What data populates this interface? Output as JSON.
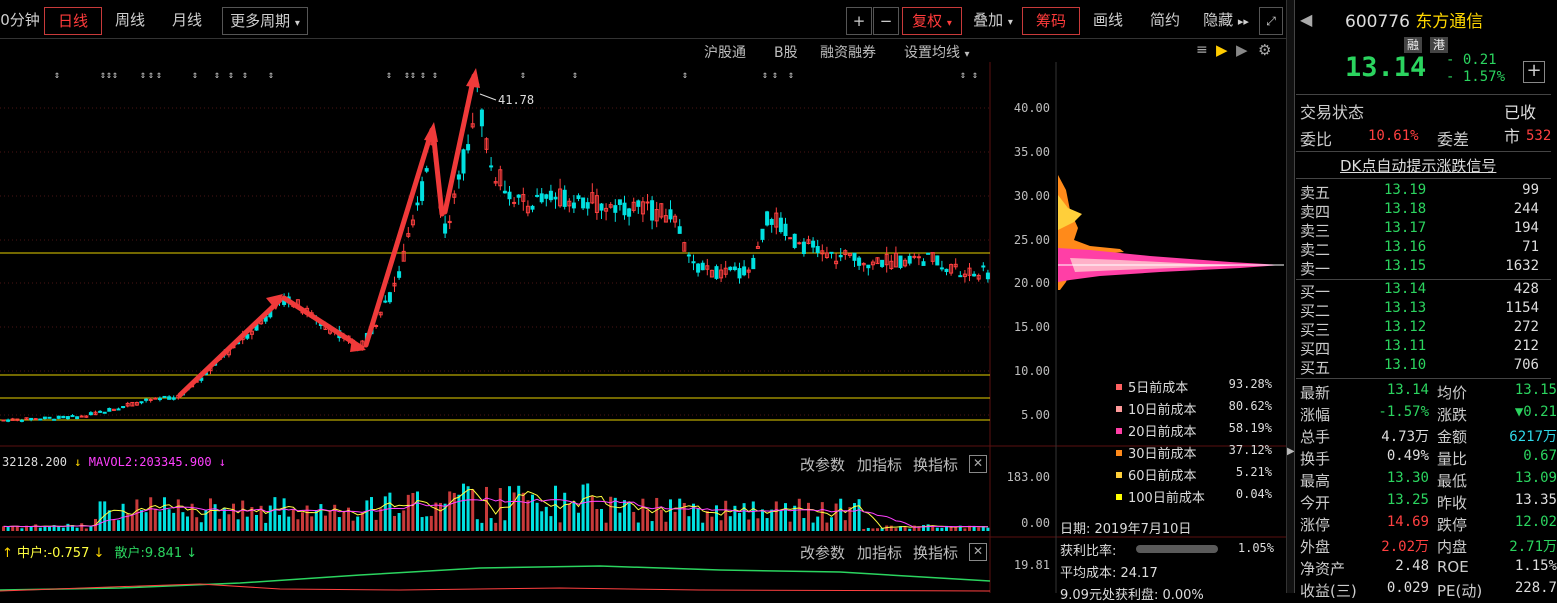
{
  "toolbar": {
    "period_cut": "0分钟",
    "day": "日线",
    "week": "周线",
    "month": "月线",
    "more": "更多周期",
    "plus": "+",
    "minus": "−",
    "fq": "复权",
    "overlay": "叠加",
    "chip": "筹码",
    "draw": "画线",
    "simple": "简约",
    "hide": "隐藏",
    "hide_arrows": "▸▸",
    "expand_icon": "expand-icon"
  },
  "subbar": {
    "hgt": "沪股通",
    "bshare": "B股",
    "margin": "融资融券",
    "ma_setting": "设置均线"
  },
  "price_axis": [
    "40.00",
    "35.00",
    "30.00",
    "25.00",
    "20.00",
    "15.00",
    "10.00",
    "5.00"
  ],
  "high_label": "41.78",
  "vol": {
    "header_a": "32128.200",
    "header_b": "MAVOL2:203345.900",
    "axis_top": "183.00",
    "axis_bot": "0.00",
    "btn1": "改参数",
    "btn2": "加指标",
    "btn3": "换指标"
  },
  "ind": {
    "mid": "中户:-0.757",
    "retail": "散户:9.841",
    "axis_top": "19.81",
    "btn1": "改参数",
    "btn2": "加指标",
    "btn3": "换指标"
  },
  "chips": {
    "legend": [
      {
        "name": "5日前成本",
        "pct": "93.28%",
        "color": "#ff6060"
      },
      {
        "name": "10日前成本",
        "pct": "80.62%",
        "color": "#ff9a9a"
      },
      {
        "name": "20日前成本",
        "pct": "58.19%",
        "color": "#ff3fa6"
      },
      {
        "name": "30日前成本",
        "pct": "37.12%",
        "color": "#ff8a1a"
      },
      {
        "name": "60日前成本",
        "pct": "5.21%",
        "color": "#ffcf3a"
      },
      {
        "name": "100日前成本",
        "pct": "0.04%",
        "color": "#ffff00"
      }
    ],
    "date_label": "日期: 2019年7月10日",
    "profit_label": "获利比率:",
    "profit_val": "1.05%",
    "avg_label": "平均成本: 24.17",
    "cut_text": "9.09元处获利盘: 0.00%"
  },
  "quote": {
    "code": "600776",
    "name": "东方通信",
    "tag1": "融",
    "tag2": "港",
    "price": "13.14",
    "change": "- 0.21",
    "change_pct": "- 1.57%",
    "status_label": "交易状态",
    "status_val": "已收市",
    "wb_label": "委比",
    "wb_val": "10.61%",
    "wc_label": "委差",
    "wc_val": "532",
    "signal": "DK点自动提示涨跌信号",
    "sells": [
      {
        "label": "卖五",
        "price": "13.19",
        "vol": "99"
      },
      {
        "label": "卖四",
        "price": "13.18",
        "vol": "244"
      },
      {
        "label": "卖三",
        "price": "13.17",
        "vol": "194"
      },
      {
        "label": "卖二",
        "price": "13.16",
        "vol": "71"
      },
      {
        "label": "卖一",
        "price": "13.15",
        "vol": "1632"
      }
    ],
    "buys": [
      {
        "label": "买一",
        "price": "13.14",
        "vol": "428"
      },
      {
        "label": "买二",
        "price": "13.13",
        "vol": "1154"
      },
      {
        "label": "买三",
        "price": "13.12",
        "vol": "272"
      },
      {
        "label": "买四",
        "price": "13.11",
        "vol": "212"
      },
      {
        "label": "买五",
        "price": "13.10",
        "vol": "706"
      }
    ],
    "stats": [
      {
        "k1": "最新",
        "v1": "13.14",
        "c1": "#2bd45f",
        "k2": "均价",
        "v2": "13.15",
        "c2": "#2bd45f"
      },
      {
        "k1": "涨幅",
        "v1": "-1.57%",
        "c1": "#2bd45f",
        "k2": "涨跌",
        "v2": "▼0.21",
        "c2": "#2bd45f"
      },
      {
        "k1": "总手",
        "v1": "4.73万",
        "c1": "#ddd",
        "k2": "金额",
        "v2": "6217万",
        "c2": "#2fd8e8"
      },
      {
        "k1": "换手",
        "v1": "0.49%",
        "c1": "#ddd",
        "k2": "量比",
        "v2": "0.67",
        "c2": "#2bd45f"
      },
      {
        "k1": "最高",
        "v1": "13.30",
        "c1": "#2bd45f",
        "k2": "最低",
        "v2": "13.09",
        "c2": "#2bd45f"
      },
      {
        "k1": "今开",
        "v1": "13.25",
        "c1": "#2bd45f",
        "k2": "昨收",
        "v2": "13.35",
        "c2": "#ddd"
      },
      {
        "k1": "涨停",
        "v1": "14.69",
        "c1": "#ff4040",
        "k2": "跌停",
        "v2": "12.02",
        "c2": "#2bd45f"
      },
      {
        "k1": "外盘",
        "v1": "2.02万",
        "c1": "#ff4040",
        "k2": "内盘",
        "v2": "2.71万",
        "c2": "#2bd45f"
      },
      {
        "k1": "净资产",
        "v1": "2.48",
        "c1": "#ddd",
        "k2": "ROE",
        "v2": "1.15%",
        "c2": "#ddd"
      },
      {
        "k1": "收益(三)",
        "v1": "0.029",
        "c1": "#ddd",
        "k2": "PE(动)",
        "v2": "228.7",
        "c2": "#ddd"
      }
    ]
  }
}
